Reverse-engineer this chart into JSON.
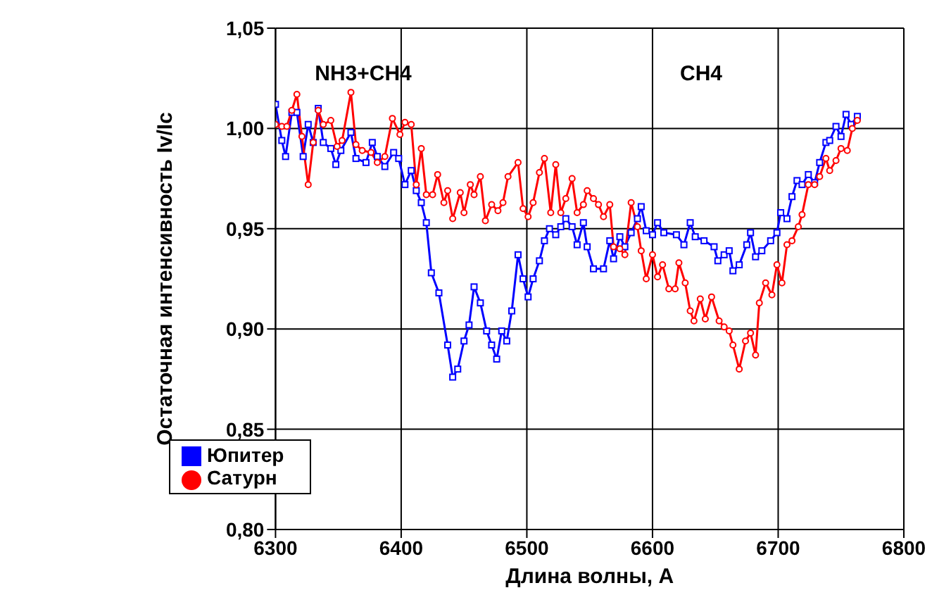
{
  "chart_data": {
    "type": "line",
    "xlabel": "Длина  волны, А",
    "ylabel": "Остаточная интенсивность Iv/Ic",
    "xlim": [
      6300,
      6800
    ],
    "xticks": [
      6300,
      6400,
      6500,
      6600,
      6700,
      6800
    ],
    "ylim": [
      0.8,
      1.05
    ],
    "yticks": [
      {
        "value": 0.8,
        "label": "0,80"
      },
      {
        "value": 0.85,
        "label": "0,85"
      },
      {
        "value": 0.9,
        "label": "0,90"
      },
      {
        "value": 0.95,
        "label": "0,95"
      },
      {
        "value": 1.0,
        "label": "1,00"
      },
      {
        "value": 1.05,
        "label": "1,05"
      }
    ],
    "grid": true,
    "legend": "bottom left",
    "annotations": [
      "NH3+CH4",
      "CH4"
    ],
    "series": [
      {
        "name": "Юпитер",
        "color": "#0000ff",
        "marker": "square",
        "x": [
          6300,
          6305,
          6308,
          6313,
          6317,
          6322,
          6326,
          6330,
          6334,
          6338,
          6344,
          6348,
          6352,
          6360,
          6364,
          6372,
          6377,
          6381,
          6387,
          6394,
          6398,
          6403,
          6408,
          6412,
          6416,
          6420,
          6424,
          6430,
          6437,
          6441,
          6445,
          6450,
          6454,
          6458,
          6463,
          6468,
          6472,
          6476,
          6480,
          6484,
          6488,
          6493,
          6497,
          6501,
          6505,
          6510,
          6514,
          6518,
          6523,
          6527,
          6531,
          6536,
          6540,
          6545,
          6548,
          6553,
          6561,
          6566,
          6569,
          6574,
          6578,
          6583,
          6588,
          6591,
          6595,
          6600,
          6604,
          6609,
          6619,
          6625,
          6630,
          6634,
          6641,
          6649,
          6652,
          6657,
          6661,
          6664,
          6669,
          6675,
          6678,
          6682,
          6687,
          6694,
          6699,
          6702,
          6707,
          6711,
          6715,
          6719,
          6724,
          6729,
          6733,
          6738,
          6741,
          6746,
          6750,
          6754,
          6758,
          6763
        ],
        "values": [
          1.012,
          0.994,
          0.986,
          1.008,
          1.008,
          0.986,
          1.002,
          0.993,
          1.01,
          0.993,
          0.99,
          0.982,
          0.989,
          0.998,
          0.985,
          0.983,
          0.993,
          0.986,
          0.981,
          0.988,
          0.985,
          0.972,
          0.979,
          0.969,
          0.963,
          0.953,
          0.928,
          0.918,
          0.892,
          0.876,
          0.88,
          0.894,
          0.902,
          0.921,
          0.913,
          0.899,
          0.892,
          0.885,
          0.899,
          0.894,
          0.909,
          0.937,
          0.925,
          0.916,
          0.925,
          0.934,
          0.944,
          0.95,
          0.947,
          0.951,
          0.955,
          0.951,
          0.942,
          0.953,
          0.941,
          0.93,
          0.93,
          0.944,
          0.935,
          0.946,
          0.941,
          0.948,
          0.955,
          0.961,
          0.949,
          0.947,
          0.953,
          0.948,
          0.947,
          0.942,
          0.953,
          0.946,
          0.944,
          0.941,
          0.934,
          0.937,
          0.939,
          0.929,
          0.932,
          0.942,
          0.948,
          0.936,
          0.939,
          0.944,
          0.948,
          0.958,
          0.955,
          0.966,
          0.974,
          0.972,
          0.977,
          0.973,
          0.983,
          0.993,
          0.994,
          1.001,
          0.996,
          1.007,
          1.002,
          1.006
        ]
      },
      {
        "name": "Сатурн",
        "color": "#ff0000",
        "marker": "circle",
        "x": [
          6300,
          6305,
          6309,
          6313,
          6317,
          6321,
          6326,
          6330,
          6334,
          6338,
          6344,
          6349,
          6353,
          6360,
          6364,
          6369,
          6376,
          6381,
          6387,
          6393,
          6399,
          6403,
          6408,
          6412,
          6416,
          6420,
          6425,
          6429,
          6434,
          6437,
          6441,
          6447,
          6450,
          6455,
          6458,
          6463,
          6467,
          6472,
          6477,
          6481,
          6485,
          6493,
          6497,
          6501,
          6505,
          6510,
          6514,
          6519,
          6523,
          6527,
          6531,
          6536,
          6540,
          6545,
          6548,
          6553,
          6557,
          6561,
          6566,
          6569,
          6574,
          6578,
          6583,
          6588,
          6591,
          6595,
          6600,
          6604,
          6608,
          6613,
          6618,
          6621,
          6626,
          6630,
          6633,
          6638,
          6642,
          6647,
          6653,
          6657,
          6661,
          6664,
          6669,
          6674,
          6678,
          6682,
          6685,
          6690,
          6695,
          6699,
          6703,
          6707,
          6711,
          6716,
          6719,
          6724,
          6729,
          6733,
          6738,
          6741,
          6746,
          6750,
          6755,
          6759,
          6763
        ],
        "values": [
          1.002,
          1.001,
          1.001,
          1.009,
          1.017,
          0.996,
          0.972,
          0.993,
          1.009,
          1.002,
          1.004,
          0.991,
          0.994,
          1.018,
          0.992,
          0.989,
          0.988,
          0.983,
          0.986,
          1.005,
          0.997,
          1.003,
          1.002,
          0.972,
          0.99,
          0.967,
          0.967,
          0.977,
          0.963,
          0.969,
          0.955,
          0.968,
          0.958,
          0.972,
          0.967,
          0.976,
          0.954,
          0.962,
          0.959,
          0.963,
          0.976,
          0.983,
          0.96,
          0.956,
          0.963,
          0.978,
          0.985,
          0.958,
          0.982,
          0.958,
          0.965,
          0.975,
          0.958,
          0.962,
          0.969,
          0.965,
          0.962,
          0.956,
          0.962,
          0.941,
          0.94,
          0.937,
          0.963,
          0.951,
          0.939,
          0.925,
          0.937,
          0.926,
          0.932,
          0.92,
          0.92,
          0.933,
          0.923,
          0.909,
          0.904,
          0.915,
          0.905,
          0.916,
          0.904,
          0.901,
          0.899,
          0.892,
          0.88,
          0.894,
          0.898,
          0.887,
          0.913,
          0.923,
          0.917,
          0.932,
          0.923,
          0.942,
          0.944,
          0.951,
          0.957,
          0.972,
          0.972,
          0.976,
          0.985,
          0.979,
          0.984,
          0.99,
          0.989,
          1.0,
          1.004
        ]
      }
    ]
  }
}
